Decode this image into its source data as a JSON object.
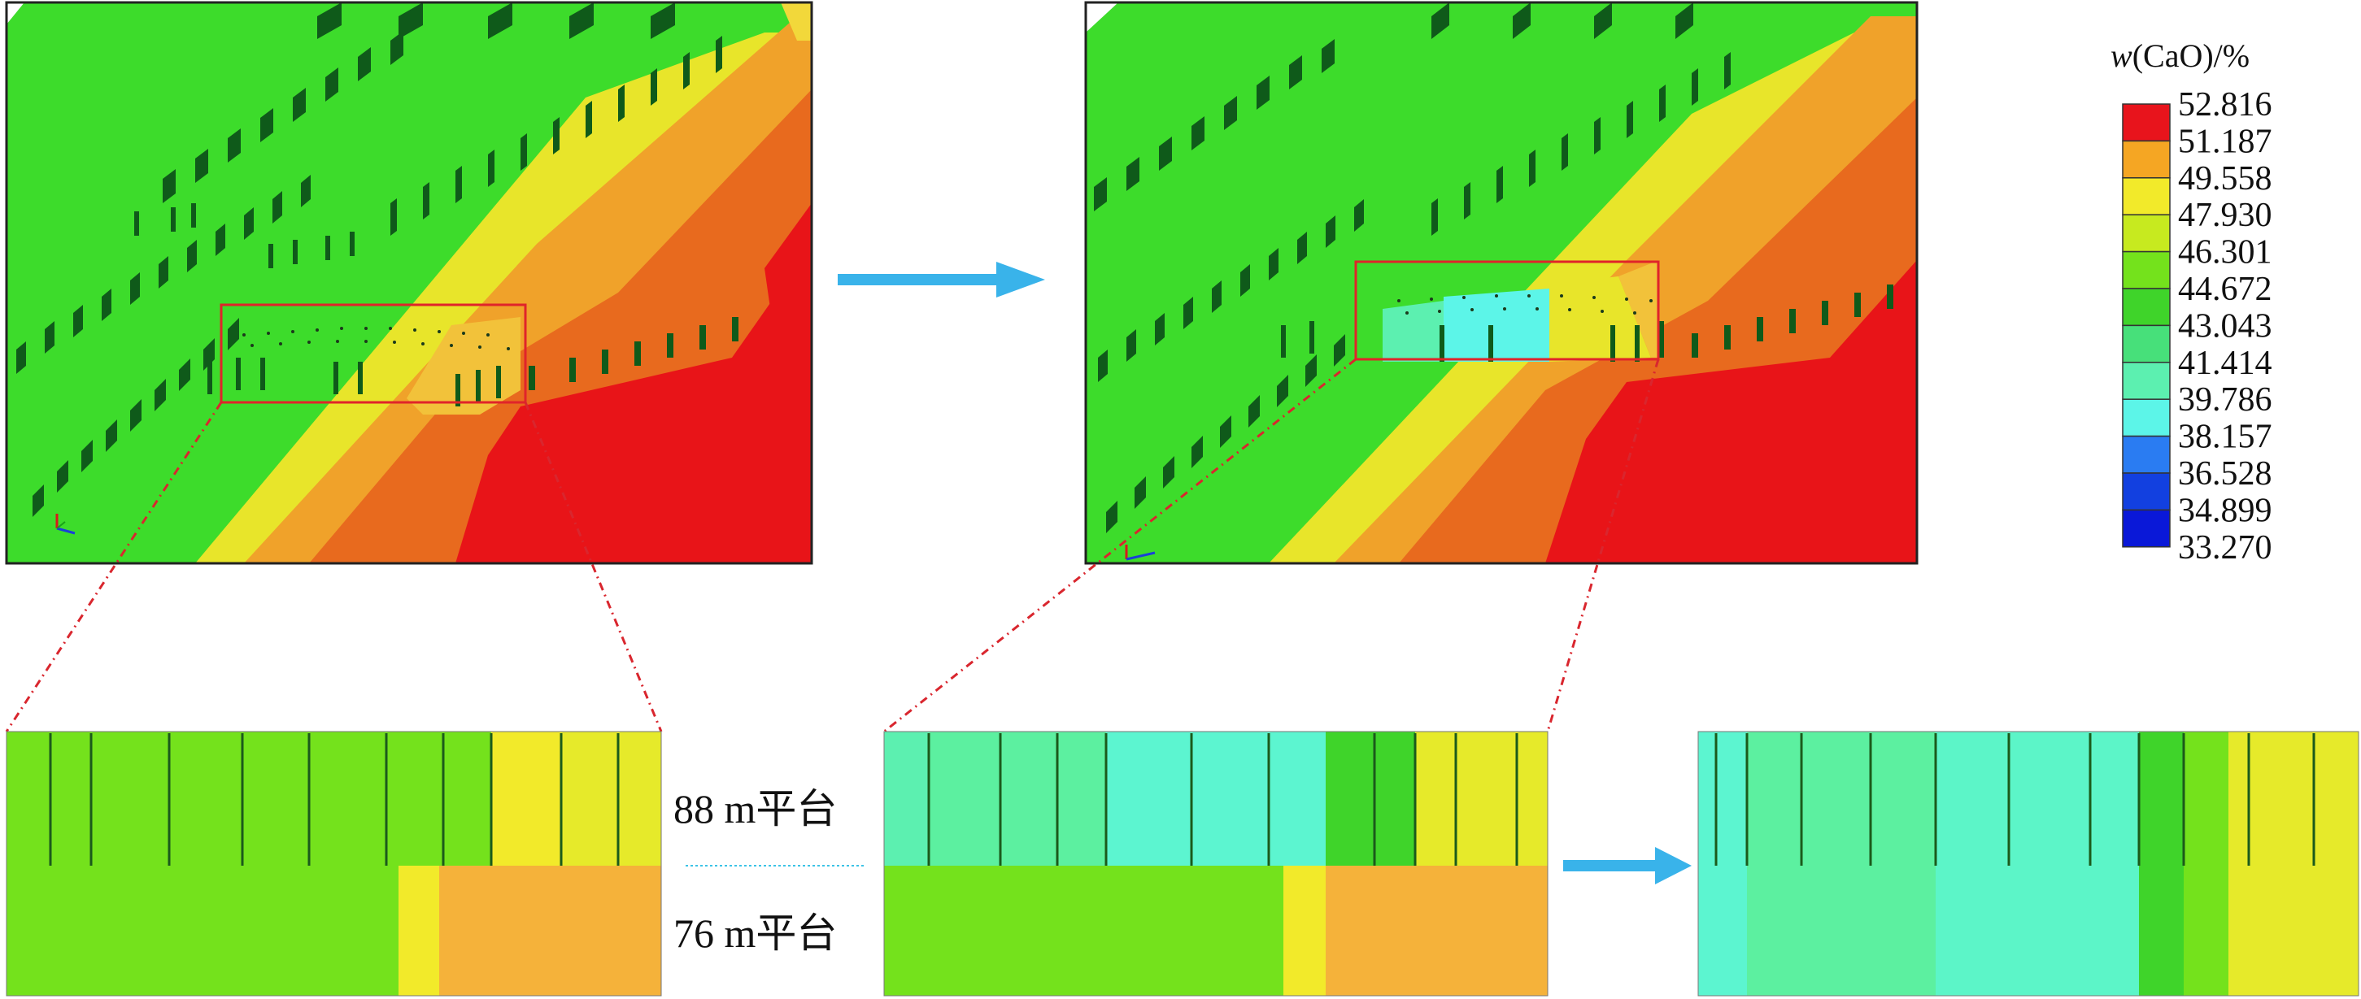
{
  "legend": {
    "title_var": "w",
    "title_rest": "(CaO)/%",
    "entries": [
      {
        "value": "52.816",
        "color": "#e8141c"
      },
      {
        "value": "51.187",
        "color": "#f5a623"
      },
      {
        "value": "49.558",
        "color": "#f2ea2a"
      },
      {
        "value": "47.930",
        "color": "#c7ea1f"
      },
      {
        "value": "46.301",
        "color": "#74e21c"
      },
      {
        "value": "44.672",
        "color": "#3fd42a"
      },
      {
        "value": "43.043",
        "color": "#47e07a"
      },
      {
        "value": "41.414",
        "color": "#5cf0b0"
      },
      {
        "value": "39.786",
        "color": "#5cf5e8"
      },
      {
        "value": "38.157",
        "color": "#2a7cf2"
      },
      {
        "value": "36.528",
        "color": "#1240e0"
      },
      {
        "value": "34.899",
        "color": "#0a18d8"
      },
      {
        "value": "33.270",
        "color": null
      }
    ]
  },
  "bench_labels": {
    "upper": "88 m平台",
    "lower": "76 m平台"
  },
  "colors": {
    "arrow": "#39b3ea",
    "highlight_box": "#e0242a",
    "zoom_line": "#d9262e",
    "bench_divider": "#3cc3e6"
  },
  "panels": [
    {
      "name": "top-left-model-view",
      "icon": "axis-triad-icon"
    },
    {
      "name": "top-right-model-view",
      "icon": "axis-triad-icon"
    },
    {
      "name": "bottom-left-section"
    },
    {
      "name": "bottom-middle-section"
    },
    {
      "name": "bottom-right-section"
    }
  ]
}
